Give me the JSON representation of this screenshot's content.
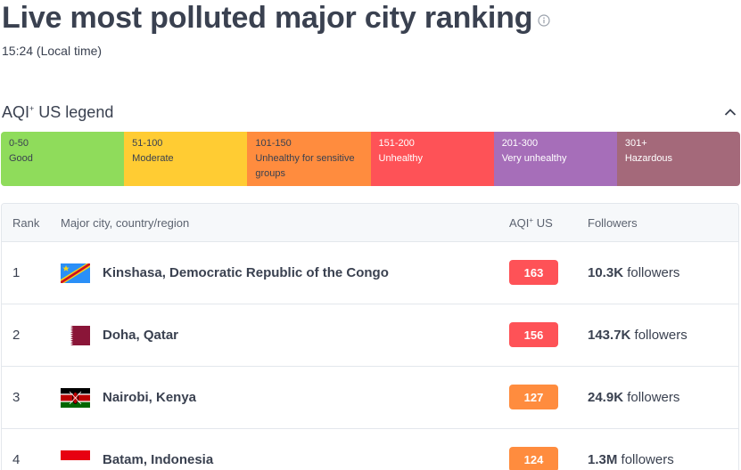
{
  "header": {
    "title": "Live most polluted major city ranking",
    "local_time": "15:24 (Local time)"
  },
  "legend": {
    "title": "AQI",
    "title_sup": "+",
    "title_suffix": " US legend",
    "segments": [
      {
        "range": "0-50",
        "label": "Good",
        "color": "#8fdc5b",
        "text_color": "#3a4150"
      },
      {
        "range": "51-100",
        "label": "Moderate",
        "color": "#ffcc33",
        "text_color": "#3a4150"
      },
      {
        "range": "101-150",
        "label": "Unhealthy for sensitive groups",
        "color": "#ff8c3e",
        "text_color": "#3a4150"
      },
      {
        "range": "151-200",
        "label": "Unhealthy",
        "color": "#fe5257",
        "text_color": "#ffffff"
      },
      {
        "range": "201-300",
        "label": "Very unhealthy",
        "color": "#a66eb9",
        "text_color": "#ffffff"
      },
      {
        "range": "301+",
        "label": "Hazardous",
        "color": "#a4697a",
        "text_color": "#ffffff"
      }
    ]
  },
  "table": {
    "headers": {
      "rank": "Rank",
      "city": "Major city, country/region",
      "aqi": "AQI",
      "aqi_sup": "+",
      "aqi_suffix": " US",
      "followers": "Followers"
    },
    "rows": [
      {
        "rank": "1",
        "city": "Kinshasa, Democratic Republic of the Congo",
        "flag": "congo-flag-icon",
        "aqi": "163",
        "aqi_color": "#fe5257",
        "followers_count": "10.3K",
        "followers_word": " followers"
      },
      {
        "rank": "2",
        "city": "Doha, Qatar",
        "flag": "qatar-flag-icon",
        "aqi": "156",
        "aqi_color": "#fe5257",
        "followers_count": "143.7K",
        "followers_word": " followers"
      },
      {
        "rank": "3",
        "city": "Nairobi, Kenya",
        "flag": "kenya-flag-icon",
        "aqi": "127",
        "aqi_color": "#ff8c3e",
        "followers_count": "24.9K",
        "followers_word": " followers"
      },
      {
        "rank": "4",
        "city": "Batam, Indonesia",
        "flag": "indonesia-flag-icon",
        "aqi": "124",
        "aqi_color": "#ff8c3e",
        "followers_count": "1.3M",
        "followers_word": " followers"
      }
    ]
  }
}
